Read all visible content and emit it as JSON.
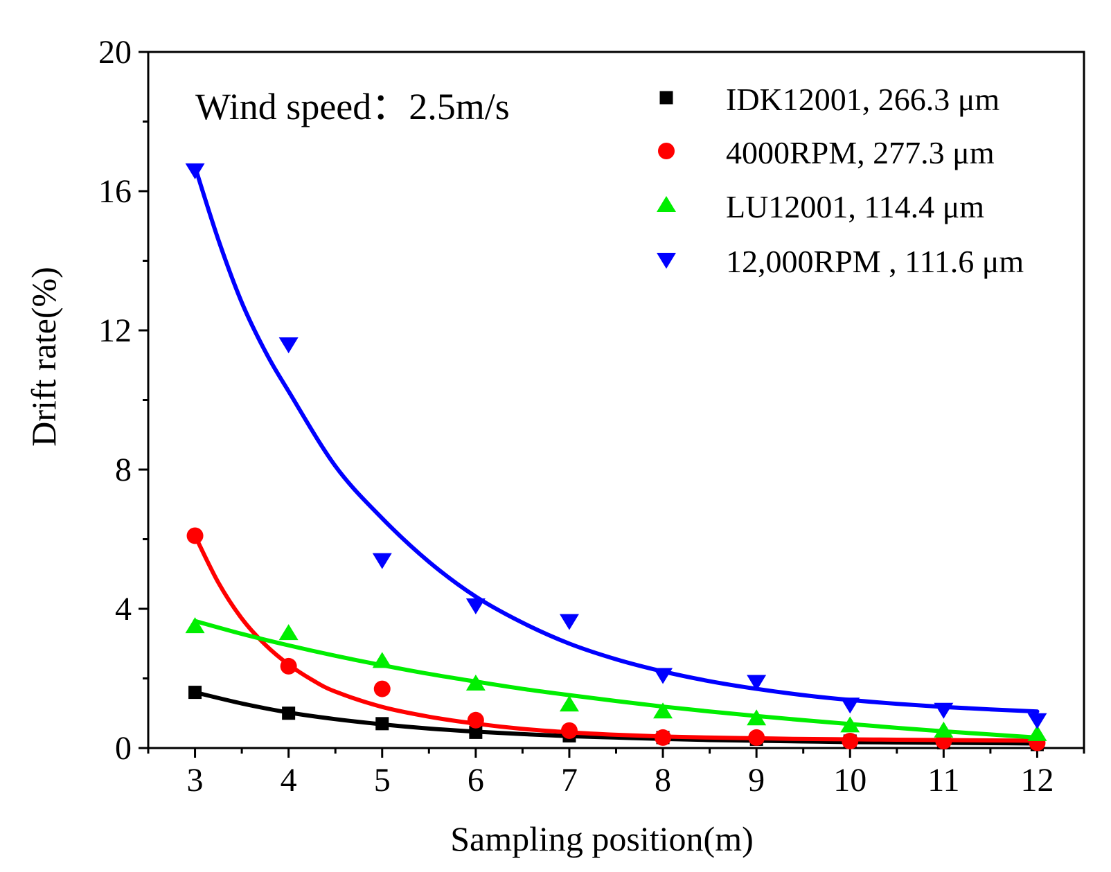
{
  "chart_data": {
    "type": "scatter",
    "title": "",
    "xlabel": "Sampling position(m)",
    "ylabel": "Drift rate(%)",
    "annotation": "Wind speed：2.5m/s",
    "xlim": [
      2.5,
      12.5
    ],
    "ylim": [
      0,
      20
    ],
    "x_ticks": [
      3,
      4,
      5,
      6,
      7,
      8,
      9,
      10,
      11,
      12
    ],
    "x_tick_labels": [
      "3",
      "4",
      "5",
      "6",
      "7",
      "8",
      "9",
      "10",
      "11",
      "12"
    ],
    "y_ticks": [
      0,
      4,
      8,
      12,
      16,
      20
    ],
    "y_tick_labels": [
      "0",
      "4",
      "8",
      "12",
      "16",
      "20"
    ],
    "grid": false,
    "legend_position": "top-right",
    "series": [
      {
        "name": "IDK12001, 266.3 μm",
        "color": "#000000",
        "marker": "square",
        "x": [
          3,
          4,
          5,
          6,
          7,
          8,
          9,
          10,
          11,
          12
        ],
        "values": [
          1.6,
          1.0,
          0.7,
          0.45,
          0.35,
          0.3,
          0.25,
          0.2,
          0.15,
          0.1
        ],
        "fit_x": [
          3,
          3.5,
          4,
          4.5,
          5,
          5.5,
          6,
          6.5,
          7,
          7.5,
          8,
          8.5,
          9,
          9.5,
          10,
          10.5,
          11,
          11.5,
          12
        ],
        "fit_values": [
          1.6,
          1.28,
          1.02,
          0.83,
          0.68,
          0.56,
          0.47,
          0.4,
          0.34,
          0.3,
          0.26,
          0.23,
          0.21,
          0.19,
          0.17,
          0.16,
          0.15,
          0.14,
          0.13
        ]
      },
      {
        "name": "4000RPM, 277.3 μm",
        "color": "#ff0000",
        "marker": "circle",
        "x": [
          3,
          4,
          5,
          6,
          7,
          8,
          9,
          10,
          11,
          12
        ],
        "values": [
          6.1,
          2.35,
          1.7,
          0.8,
          0.5,
          0.3,
          0.3,
          0.2,
          0.2,
          0.15
        ],
        "fit_x": [
          3,
          3.25,
          3.5,
          3.75,
          4,
          4.25,
          4.5,
          5,
          5.5,
          6,
          6.5,
          7,
          7.5,
          8,
          8.5,
          9,
          9.5,
          10,
          10.5,
          11,
          11.5,
          12
        ],
        "fit_values": [
          6.1,
          4.75,
          3.72,
          2.97,
          2.4,
          1.96,
          1.62,
          1.18,
          0.9,
          0.7,
          0.55,
          0.45,
          0.38,
          0.33,
          0.3,
          0.28,
          0.26,
          0.25,
          0.24,
          0.23,
          0.22,
          0.21
        ]
      },
      {
        "name": "LU12001, 114.4 μm",
        "color": "#00ee00",
        "marker": "triangle-up",
        "x": [
          3,
          4,
          5,
          6,
          7,
          8,
          9,
          10,
          11,
          12
        ],
        "values": [
          3.5,
          3.3,
          2.5,
          1.85,
          1.25,
          1.05,
          0.85,
          0.65,
          0.5,
          0.4
        ],
        "fit_x": [
          3,
          3.5,
          4,
          4.5,
          5,
          5.5,
          6,
          6.5,
          7,
          7.5,
          8,
          8.5,
          9,
          9.5,
          10,
          10.5,
          11,
          11.5,
          12
        ],
        "fit_values": [
          3.65,
          3.28,
          2.95,
          2.65,
          2.38,
          2.13,
          1.91,
          1.7,
          1.52,
          1.35,
          1.19,
          1.05,
          0.92,
          0.8,
          0.69,
          0.58,
          0.48,
          0.39,
          0.3
        ]
      },
      {
        "name": "12,000RPM , 111.6 μm",
        "color": "#0000ff",
        "marker": "triangle-down",
        "x": [
          3,
          4,
          5,
          6,
          7,
          8,
          9,
          10,
          11,
          12
        ],
        "values": [
          16.6,
          11.6,
          5.4,
          4.1,
          3.65,
          2.1,
          1.9,
          1.25,
          1.1,
          0.8
        ],
        "fit_x": [
          3,
          3.25,
          3.5,
          3.75,
          4,
          4.5,
          5,
          5.5,
          6,
          6.5,
          7,
          7.5,
          8,
          8.5,
          9,
          9.5,
          10,
          10.5,
          11,
          11.5,
          12
        ],
        "fit_values": [
          16.7,
          14.6,
          12.8,
          11.4,
          10.25,
          8.1,
          6.6,
          5.35,
          4.35,
          3.6,
          3.0,
          2.55,
          2.2,
          1.92,
          1.7,
          1.52,
          1.38,
          1.27,
          1.18,
          1.11,
          1.05
        ]
      }
    ]
  }
}
